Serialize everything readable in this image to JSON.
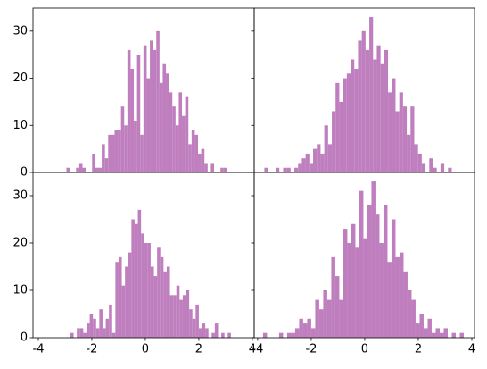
{
  "chart_data": [
    {
      "type": "histogram",
      "color": "#bf7fbf",
      "bins": [
        -2.95,
        -2.83,
        -2.71,
        -2.59,
        -2.47,
        -2.35,
        -2.23,
        -2.11,
        -1.99,
        -1.87,
        -1.75,
        -1.63,
        -1.51,
        -1.39,
        -1.27,
        -1.15,
        -1.03,
        -0.91,
        -0.79,
        -0.67,
        -0.55,
        -0.43,
        -0.31,
        -0.19,
        -0.07,
        0.05,
        0.17,
        0.29,
        0.41,
        0.53,
        0.65,
        0.77,
        0.89,
        1.01,
        1.13,
        1.25,
        1.37,
        1.49,
        1.61,
        1.73,
        1.85,
        1.97,
        2.09,
        2.21,
        2.33,
        2.45,
        2.57,
        2.69,
        2.81,
        2.93,
        3.05
      ],
      "values": [
        1,
        0,
        0,
        1,
        2,
        1,
        0,
        0,
        4,
        1,
        1,
        6,
        3,
        8,
        8,
        9,
        9,
        14,
        10,
        26,
        22,
        11,
        25,
        8,
        27,
        20,
        28,
        26,
        30,
        19,
        23,
        21,
        17,
        14,
        10,
        17,
        12,
        16,
        6,
        9,
        8,
        4,
        5,
        2,
        0,
        2,
        0,
        0,
        1,
        1
      ],
      "xlim": [
        -4.2,
        4.07
      ],
      "ylim": [
        0,
        34.9
      ],
      "yticks": [
        0,
        10,
        20,
        30
      ],
      "ytick_labels": true
    },
    {
      "type": "histogram",
      "color": "#bf7fbf",
      "bins": [
        -3.75,
        -3.61,
        -3.47,
        -3.33,
        -3.19,
        -3.05,
        -2.91,
        -2.77,
        -2.63,
        -2.49,
        -2.35,
        -2.21,
        -2.07,
        -1.93,
        -1.79,
        -1.65,
        -1.51,
        -1.37,
        -1.23,
        -1.09,
        -0.95,
        -0.81,
        -0.67,
        -0.53,
        -0.39,
        -0.25,
        -0.11,
        0.03,
        0.17,
        0.31,
        0.45,
        0.59,
        0.73,
        0.87,
        1.01,
        1.15,
        1.29,
        1.43,
        1.57,
        1.71,
        1.85,
        1.99,
        2.13,
        2.27,
        2.41,
        2.55,
        2.69,
        2.83,
        2.97,
        3.11,
        3.25
      ],
      "values": [
        1,
        0,
        0,
        1,
        0,
        1,
        1,
        0,
        1,
        2,
        3,
        4,
        2,
        5,
        6,
        4,
        10,
        6,
        13,
        19,
        15,
        20,
        21,
        24,
        22,
        28,
        30,
        26,
        33,
        24,
        27,
        23,
        26,
        17,
        20,
        13,
        17,
        14,
        8,
        14,
        6,
        4,
        2,
        0,
        3,
        1,
        0,
        2,
        0,
        1
      ],
      "xlim": [
        -4.13,
        4.1
      ],
      "ylim": [
        0,
        34.9
      ],
      "yticks": [
        0,
        10,
        20,
        30
      ],
      "ytick_labels": false
    },
    {
      "type": "histogram",
      "color": "#bf7fbf",
      "bins": [
        -2.8,
        -2.68,
        -2.56,
        -2.44,
        -2.32,
        -2.2,
        -2.08,
        -1.96,
        -1.84,
        -1.72,
        -1.6,
        -1.48,
        -1.36,
        -1.24,
        -1.12,
        -1,
        -0.88,
        -0.76,
        -0.64,
        -0.52,
        -0.4,
        -0.28,
        -0.16,
        -0.04,
        0.08,
        0.2,
        0.32,
        0.44,
        0.56,
        0.68,
        0.8,
        0.92,
        1.04,
        1.16,
        1.28,
        1.4,
        1.52,
        1.64,
        1.76,
        1.88,
        2,
        2.12,
        2.24,
        2.36,
        2.48,
        2.6,
        2.72,
        2.84,
        2.96,
        3.08,
        3.2
      ],
      "values": [
        1,
        0,
        2,
        2,
        1,
        3,
        5,
        4,
        2,
        6,
        2,
        4,
        7,
        1,
        16,
        17,
        11,
        15,
        18,
        25,
        24,
        27,
        22,
        20,
        20,
        15,
        13,
        19,
        17,
        14,
        15,
        9,
        9,
        11,
        8,
        9,
        10,
        6,
        4,
        7,
        2,
        3,
        2,
        0,
        1,
        3,
        0,
        1,
        0,
        1
      ],
      "xlim": [
        -4.2,
        4.07
      ],
      "ylim": [
        0,
        34.9
      ],
      "xticks": [
        -4,
        -2,
        0,
        2,
        4
      ],
      "yticks": [
        0,
        10,
        20,
        30
      ],
      "ytick_labels": true
    },
    {
      "type": "histogram",
      "color": "#bf7fbf",
      "bins": [
        -3.8,
        -3.65,
        -3.5,
        -3.35,
        -3.2,
        -3.05,
        -2.9,
        -2.75,
        -2.6,
        -2.45,
        -2.3,
        -2.15,
        -2,
        -1.85,
        -1.7,
        -1.55,
        -1.4,
        -1.25,
        -1.1,
        -0.95,
        -0.8,
        -0.65,
        -0.5,
        -0.35,
        -0.2,
        -0.05,
        0.1,
        0.25,
        0.4,
        0.55,
        0.7,
        0.85,
        1,
        1.15,
        1.3,
        1.45,
        1.6,
        1.75,
        1.9,
        2.05,
        2.2,
        2.35,
        2.5,
        2.65,
        2.8,
        2.95,
        3.1,
        3.25,
        3.4,
        3.55,
        3.7
      ],
      "values": [
        1,
        0,
        0,
        0,
        1,
        0,
        1,
        1,
        2,
        4,
        3,
        4,
        2,
        8,
        6,
        10,
        8,
        17,
        13,
        8,
        23,
        20,
        24,
        19,
        31,
        21,
        28,
        33,
        26,
        20,
        28,
        16,
        25,
        17,
        18,
        14,
        10,
        8,
        3,
        5,
        2,
        4,
        1,
        2,
        1,
        2,
        0,
        1,
        0,
        1
      ],
      "xlim": [
        -4.13,
        4.1
      ],
      "ylim": [
        0,
        34.9
      ],
      "xticks": [
        -4,
        -2,
        0,
        2,
        4
      ],
      "yticks": [
        0,
        10,
        20,
        30
      ],
      "ytick_labels": false
    }
  ]
}
